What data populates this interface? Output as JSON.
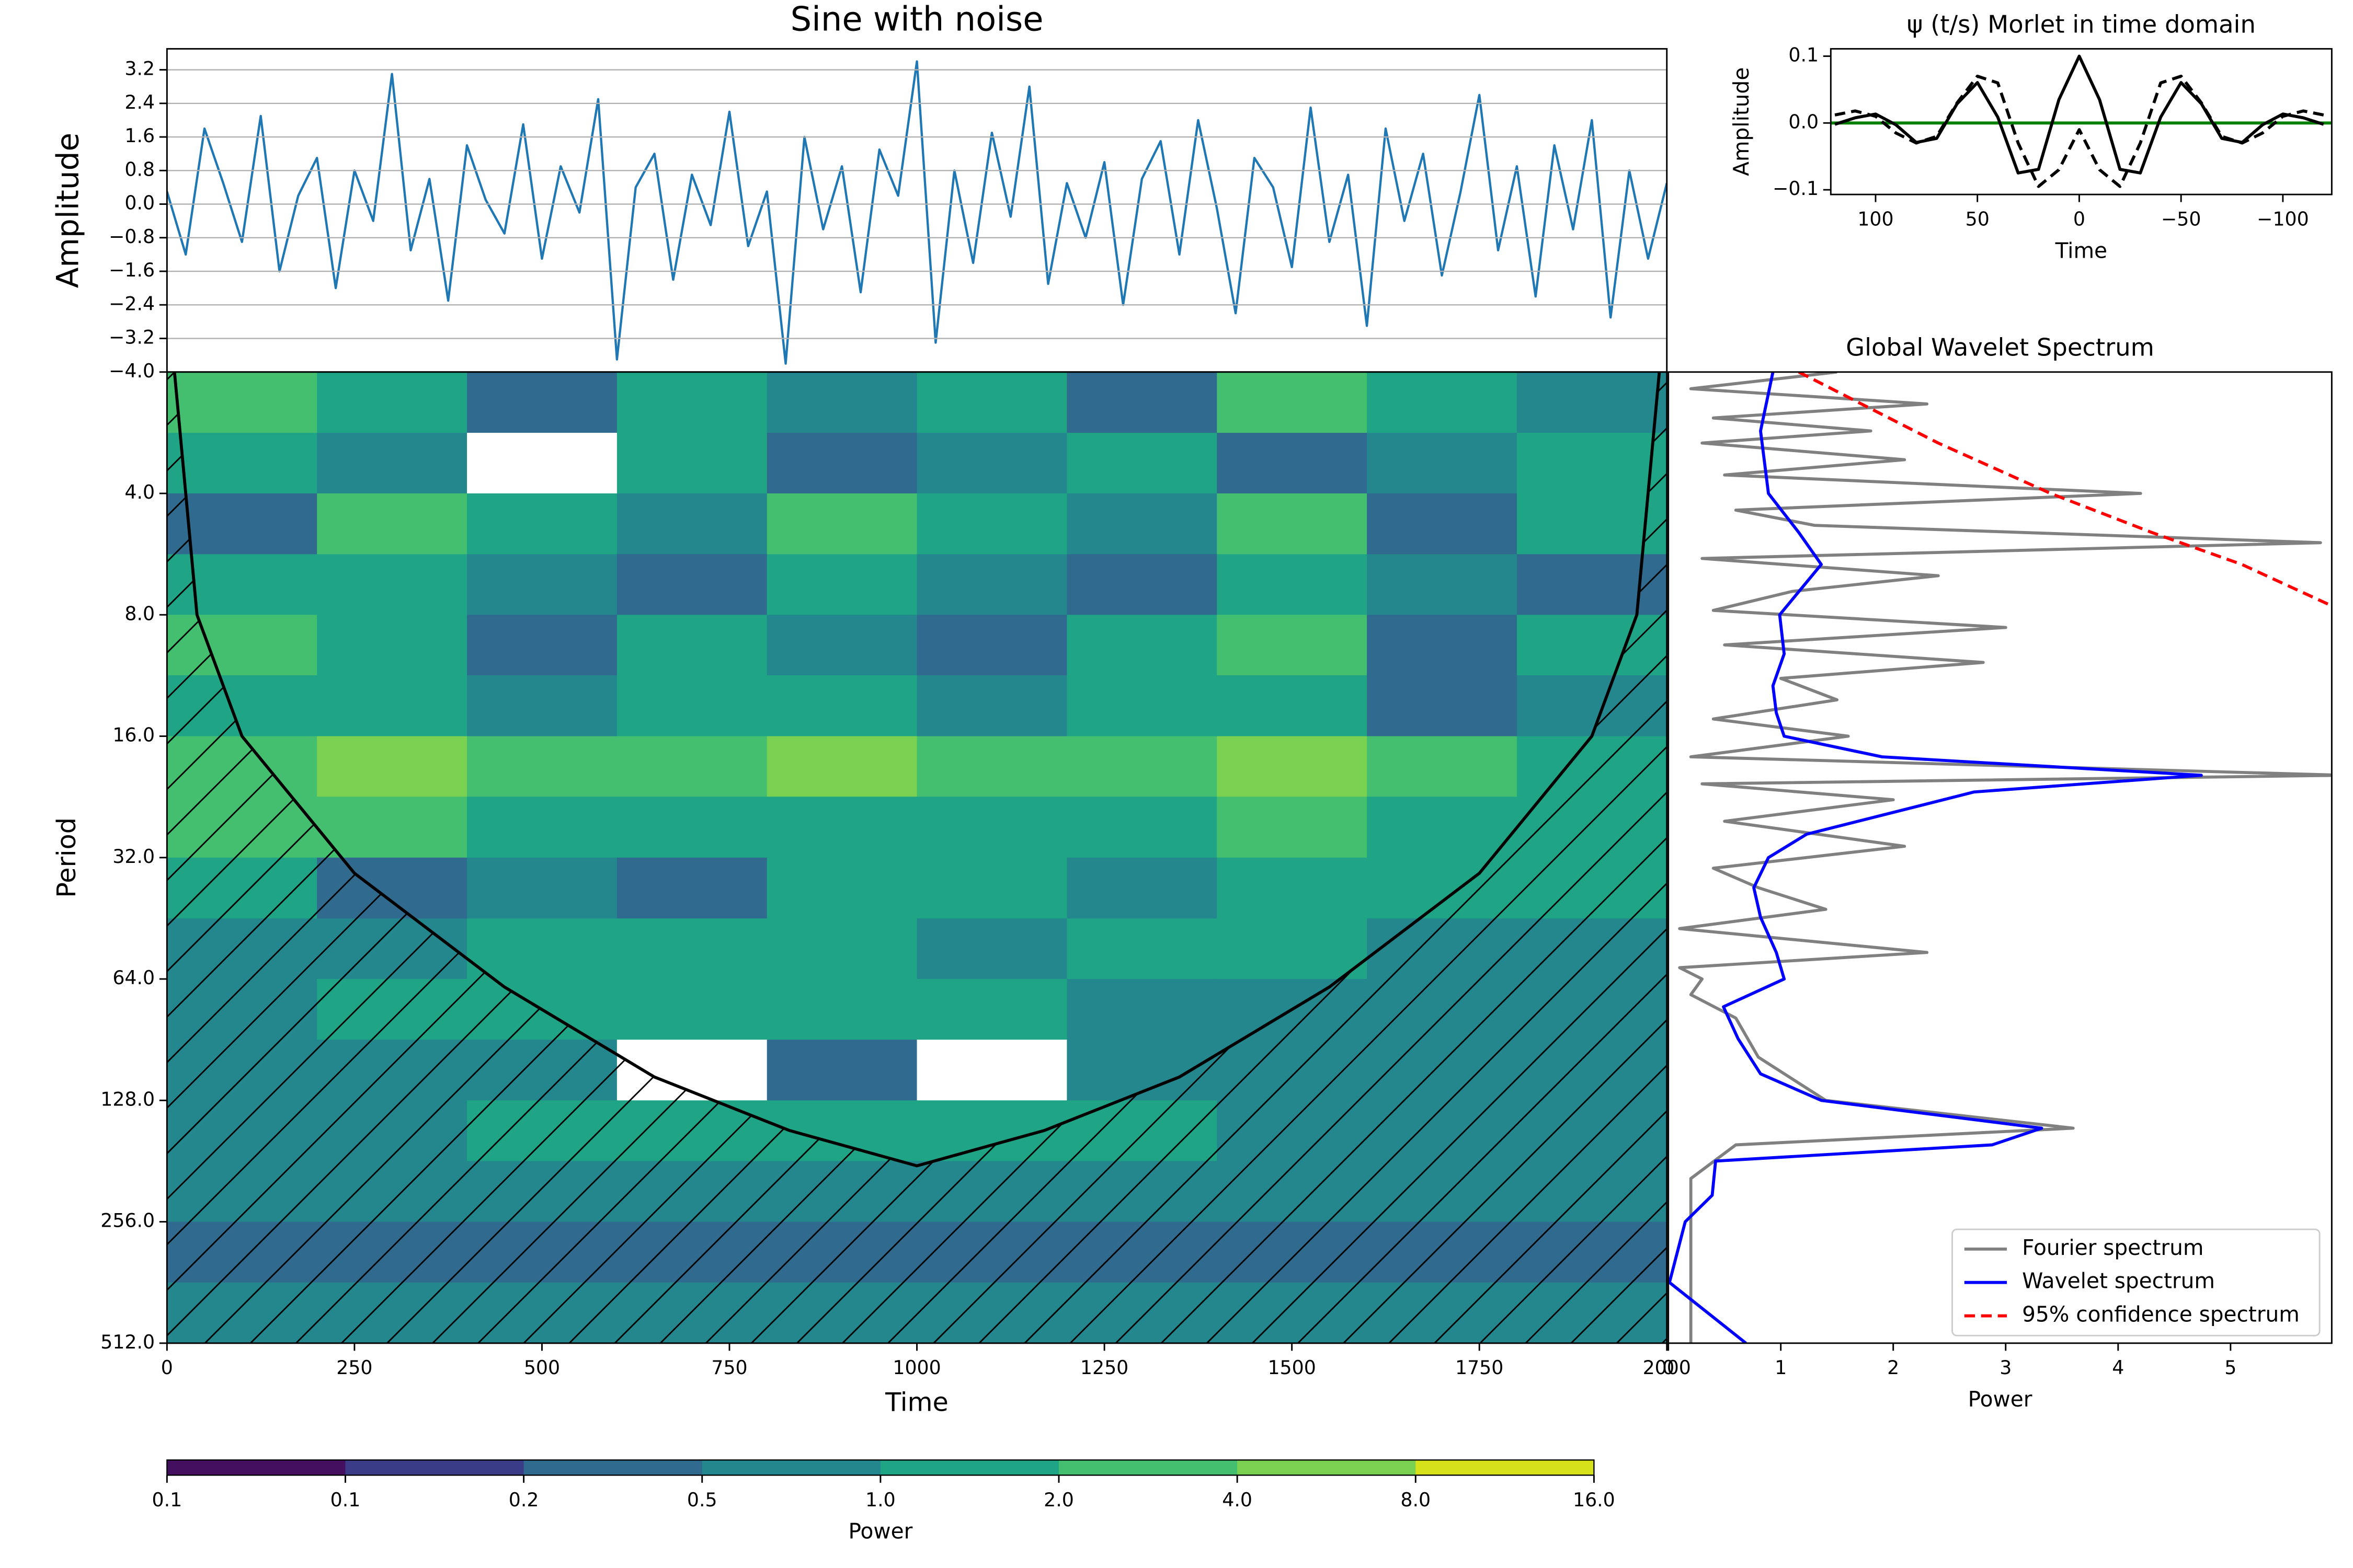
{
  "chart_data": [
    {
      "type": "line",
      "title": "Sine with noise",
      "ylabel": "Amplitude",
      "color": "#1f77b4",
      "grid": true,
      "xlim": [
        0,
        2000
      ],
      "ylim": [
        -4,
        3.7
      ],
      "yticks": [
        {
          "value": -4,
          "label": "−4.0"
        },
        {
          "value": -3.2,
          "label": "−3.2"
        },
        {
          "value": -2.4,
          "label": "−2.4"
        },
        {
          "value": -1.6,
          "label": "−1.6"
        },
        {
          "value": -0.8,
          "label": "−0.8"
        },
        {
          "value": 0,
          "label": "0.0"
        },
        {
          "value": 0.8,
          "label": "0.8"
        },
        {
          "value": 1.6,
          "label": "1.6"
        },
        {
          "value": 2.4,
          "label": "2.4"
        },
        {
          "value": 3.2,
          "label": "3.2"
        }
      ],
      "x": [
        0,
        25,
        50,
        75,
        100,
        125,
        150,
        175,
        200,
        225,
        250,
        275,
        300,
        325,
        350,
        375,
        400,
        425,
        450,
        475,
        500,
        525,
        550,
        575,
        600,
        625,
        650,
        675,
        700,
        725,
        750,
        775,
        800,
        825,
        850,
        875,
        900,
        925,
        950,
        975,
        1000,
        1025,
        1050,
        1075,
        1100,
        1125,
        1150,
        1175,
        1200,
        1225,
        1250,
        1275,
        1300,
        1325,
        1350,
        1375,
        1400,
        1425,
        1450,
        1475,
        1500,
        1525,
        1550,
        1575,
        1600,
        1625,
        1650,
        1675,
        1700,
        1725,
        1750,
        1775,
        1800,
        1825,
        1850,
        1875,
        1900,
        1925,
        1950,
        1975,
        2000
      ],
      "values": [
        0.3,
        -1.2,
        1.8,
        0.5,
        -0.9,
        2.1,
        -1.6,
        0.2,
        1.1,
        -2.0,
        0.8,
        -0.4,
        3.1,
        -1.1,
        0.6,
        -2.3,
        1.4,
        0.1,
        -0.7,
        1.9,
        -1.3,
        0.9,
        -0.2,
        2.5,
        -3.7,
        0.4,
        1.2,
        -1.8,
        0.7,
        -0.5,
        2.2,
        -1.0,
        0.3,
        -3.8,
        1.6,
        -0.6,
        0.9,
        -2.1,
        1.3,
        0.2,
        3.4,
        -3.3,
        0.8,
        -1.4,
        1.7,
        -0.3,
        2.8,
        -1.9,
        0.5,
        -0.8,
        1.0,
        -2.4,
        0.6,
        1.5,
        -1.2,
        2.0,
        -0.1,
        -2.6,
        1.1,
        0.4,
        -1.5,
        2.3,
        -0.9,
        0.7,
        -2.9,
        1.8,
        -0.4,
        1.2,
        -1.7,
        0.3,
        2.6,
        -1.1,
        0.9,
        -2.2,
        1.4,
        -0.6,
        2.0,
        -2.7,
        0.8,
        -1.3,
        0.5
      ]
    },
    {
      "type": "contour",
      "xlabel": "Time",
      "ylabel": "Period",
      "yscale": "log",
      "xlim": [
        0,
        2000
      ],
      "xticks": [
        0,
        250,
        500,
        750,
        1000,
        1250,
        1500,
        1750,
        2000
      ],
      "ylim": [
        512,
        2
      ],
      "yticks": [
        {
          "value": 4,
          "label": "4.0"
        },
        {
          "value": 8,
          "label": "8.0"
        },
        {
          "value": 16,
          "label": "16.0"
        },
        {
          "value": 32,
          "label": "32.0"
        },
        {
          "value": 64,
          "label": "64.0"
        },
        {
          "value": 128,
          "label": "128.0"
        },
        {
          "value": 256,
          "label": "256.0"
        },
        {
          "value": 512,
          "label": "512.0"
        }
      ],
      "x_edges": [
        0,
        200,
        400,
        600,
        800,
        1000,
        1200,
        1400,
        1600,
        1800,
        2000
      ],
      "y_edges": [
        2,
        2.83,
        4,
        5.66,
        8,
        11.3,
        16,
        22.6,
        32,
        45.3,
        64,
        90.5,
        128,
        181,
        256,
        362,
        512
      ],
      "values": [
        [
          3,
          1.5,
          0.3,
          1.5,
          0.7,
          1.5,
          0.3,
          3,
          1.5,
          0.7
        ],
        [
          1.5,
          0.7,
          0.03,
          1.5,
          0.3,
          0.7,
          1.5,
          0.3,
          0.7,
          1.5
        ],
        [
          0.3,
          3,
          1.5,
          0.7,
          3,
          1.5,
          0.7,
          3,
          0.3,
          1.5
        ],
        [
          1.5,
          1.5,
          0.7,
          0.3,
          1.5,
          0.7,
          0.3,
          1.5,
          0.7,
          0.3
        ],
        [
          3,
          1.5,
          0.3,
          1.5,
          0.7,
          0.3,
          1.5,
          3,
          0.3,
          1.5
        ],
        [
          1.5,
          1.5,
          0.7,
          1.5,
          1.5,
          0.7,
          1.5,
          1.5,
          0.3,
          0.7
        ],
        [
          3,
          6,
          3,
          3,
          6,
          3,
          3,
          6,
          3,
          1.5
        ],
        [
          3,
          3,
          1.5,
          1.5,
          1.5,
          1.5,
          1.5,
          3,
          1.5,
          1.5
        ],
        [
          1.5,
          0.3,
          0.7,
          0.3,
          1.5,
          1.5,
          0.7,
          1.5,
          1.5,
          1.5
        ],
        [
          0.7,
          0.7,
          1.5,
          1.5,
          1.5,
          0.7,
          1.5,
          1.5,
          0.7,
          0.7
        ],
        [
          0.7,
          1.5,
          1.5,
          1.5,
          1.5,
          1.5,
          0.7,
          0.7,
          0.7,
          0.7
        ],
        [
          0.7,
          0.7,
          0.7,
          0.03,
          0.3,
          0.03,
          0.7,
          0.7,
          0.7,
          0.7
        ],
        [
          0.7,
          0.7,
          1.5,
          1.5,
          1.5,
          1.5,
          1.5,
          0.7,
          0.7,
          0.7
        ],
        [
          0.7,
          0.7,
          0.7,
          0.7,
          0.7,
          0.7,
          0.7,
          0.7,
          0.7,
          0.7
        ],
        [
          0.3,
          0.3,
          0.3,
          0.3,
          0.3,
          0.3,
          0.3,
          0.3,
          0.3,
          0.3
        ],
        [
          0.7,
          0.7,
          0.7,
          0.7,
          0.7,
          0.7,
          0.7,
          0.7,
          0.7,
          0.7
        ]
      ],
      "coi": {
        "x": [
          10,
          40,
          100,
          250,
          450,
          650,
          830,
          1000,
          1170,
          1350,
          1550,
          1750,
          1900,
          1960,
          1990
        ],
        "values": [
          2,
          8,
          16,
          35,
          67,
          112,
          152,
          186,
          152,
          112,
          67,
          35,
          16,
          8,
          2
        ]
      },
      "colorbar": {
        "label": "Power",
        "levels": [
          {
            "value": 0.0625,
            "label": "0.1"
          },
          {
            "value": 0.125,
            "label": "0.1"
          },
          {
            "value": 0.25,
            "label": "0.2"
          },
          {
            "value": 0.5,
            "label": "0.5"
          },
          {
            "value": 1,
            "label": "1.0"
          },
          {
            "value": 2,
            "label": "2.0"
          },
          {
            "value": 4,
            "label": "4.0"
          },
          {
            "value": 8,
            "label": "8.0"
          },
          {
            "value": 16,
            "label": "16.0"
          }
        ],
        "colors": [
          "#440f5e",
          "#3b3c87",
          "#306a8e",
          "#24878e",
          "#20a486",
          "#44bf70",
          "#7ad151",
          "#d6e11a"
        ]
      }
    },
    {
      "type": "line",
      "title": "ψ (t/s) Morlet in time domain",
      "xlabel": "Time",
      "ylabel": "Amplitude",
      "xlim": [
        122,
        -124
      ],
      "xticks": [
        100,
        50,
        0,
        {
          "value": -50,
          "label": "−50"
        },
        {
          "value": -100,
          "label": "−100"
        }
      ],
      "ylim": [
        -0.107,
        0.111
      ],
      "yticks": [
        {
          "value": -0.1,
          "label": "−0.1"
        },
        {
          "value": 0,
          "label": "0.0"
        },
        {
          "value": 0.1,
          "label": "0.1"
        }
      ],
      "baseline": {
        "value": 0,
        "color": "#008000"
      },
      "x": [
        -120,
        -110,
        -100,
        -90,
        -80,
        -70,
        -60,
        -50,
        -40,
        -30,
        -20,
        -10,
        0,
        10,
        20,
        30,
        40,
        50,
        60,
        70,
        80,
        90,
        100,
        110,
        120
      ],
      "series": [
        {
          "color": "#000000",
          "dash": false,
          "values": [
            -0.002,
            0.0078,
            0.0134,
            -0.0028,
            -0.0291,
            -0.0231,
            0.0287,
            0.0605,
            0.0088,
            -0.0748,
            -0.0694,
            0.0348,
            0.1,
            0.0348,
            -0.0694,
            -0.0748,
            0.0088,
            0.0605,
            0.0287,
            -0.0231,
            -0.0291,
            -0.0028,
            0.0134,
            0.0078,
            -0.002
          ]
        },
        {
          "color": "#000000",
          "dash": true,
          "values": [
            0.012,
            0.018,
            0.01,
            -0.015,
            -0.03,
            -0.02,
            0.03,
            0.07,
            0.06,
            -0.03,
            -0.095,
            -0.07,
            -0.01,
            -0.07,
            -0.095,
            -0.03,
            0.06,
            0.07,
            0.03,
            -0.02,
            -0.03,
            -0.015,
            0.01,
            0.018,
            0.012
          ]
        }
      ]
    },
    {
      "type": "line",
      "orientation": "horizontal",
      "title": "Global Wavelet Spectrum",
      "xlabel": "Power",
      "yscale": "log",
      "xlim": [
        0,
        5.9
      ],
      "xticks": [
        0,
        1,
        2,
        3,
        4,
        5
      ],
      "ylim": [
        512,
        2
      ],
      "legend": "lower right",
      "series": [
        {
          "name": "Fourier spectrum",
          "color": "#808080",
          "dash": false,
          "y": [
            2,
            2.2,
            2.4,
            2.6,
            2.8,
            3,
            3.3,
            3.6,
            4,
            4.4,
            4.8,
            5.3,
            5.8,
            6.4,
            7,
            7.8,
            8.6,
            9.5,
            10.5,
            11.5,
            13,
            14.5,
            16,
            18,
            20,
            21,
            23,
            26,
            30,
            34,
            38,
            43,
            48,
            55,
            60,
            64,
            70,
            80,
            100,
            128,
            150,
            165,
            200,
            256,
            350,
            512
          ],
          "values": [
            1.5,
            0.2,
            2.3,
            0.4,
            1.8,
            0.3,
            2.1,
            0.5,
            4.2,
            0.6,
            1.3,
            5.8,
            0.3,
            2.4,
            1.1,
            0.4,
            3.0,
            0.5,
            2.8,
            1.0,
            1.5,
            0.4,
            1.6,
            0.2,
            6.0,
            0.3,
            2.0,
            0.5,
            2.1,
            0.4,
            0.8,
            1.4,
            0.1,
            2.3,
            0.1,
            0.3,
            0.2,
            0.6,
            0.8,
            1.4,
            3.6,
            0.6,
            0.2,
            0.2,
            0.2,
            0.2
          ]
        },
        {
          "name": "Wavelet spectrum",
          "color": "#0000ff",
          "dash": false,
          "y": [
            2,
            2.8,
            4,
            5,
            6,
            8,
            10,
            12,
            14,
            16,
            18,
            20,
            22,
            28,
            32,
            38,
            45,
            55,
            64,
            75,
            90,
            110,
            128,
            150,
            165,
            181,
            220,
            256,
            362,
            512
          ],
          "values": [
            0.93,
            0.82,
            0.89,
            1.16,
            1.36,
            0.99,
            1.03,
            0.93,
            0.96,
            1.03,
            1.9,
            4.74,
            2.72,
            1.23,
            0.89,
            0.76,
            0.82,
            0.96,
            1.03,
            0.49,
            0.62,
            0.82,
            1.36,
            3.32,
            2.88,
            0.42,
            0.39,
            0.15,
            0.01,
            0.69
          ]
        },
        {
          "name": "95% confidence spectrum",
          "color": "#ff0000",
          "dash": true,
          "y": [
            2,
            3,
            4,
            5,
            6,
            7.6
          ],
          "values": [
            1.16,
            2.4,
            3.4,
            4.3,
            5.1,
            5.9
          ]
        }
      ]
    }
  ]
}
